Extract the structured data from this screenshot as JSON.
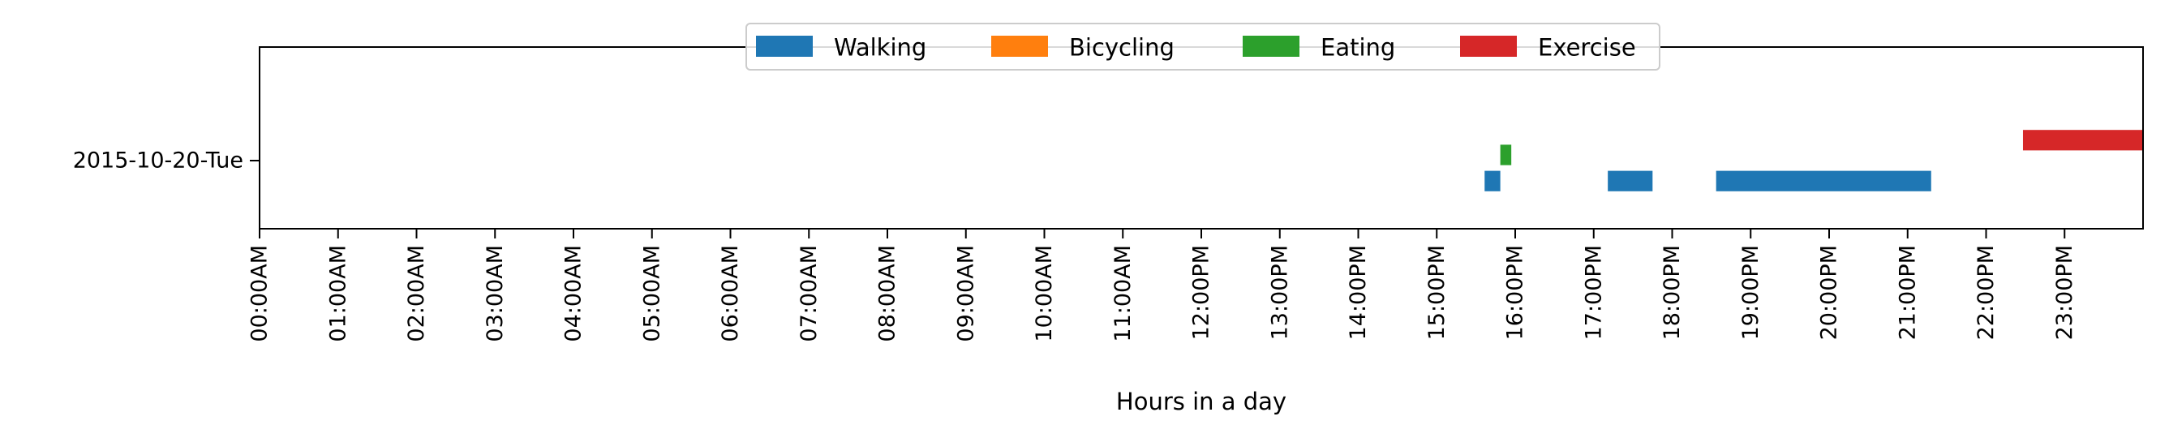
{
  "chart_data": {
    "type": "broken_barh",
    "title": "",
    "xlabel": "Hours in a day",
    "ylabel": "",
    "xlim": [
      0,
      24
    ],
    "x_unit": "hour",
    "x_ticks": [
      {
        "value": 0,
        "label": "00:00AM"
      },
      {
        "value": 1,
        "label": "01:00AM"
      },
      {
        "value": 2,
        "label": "02:00AM"
      },
      {
        "value": 3,
        "label": "03:00AM"
      },
      {
        "value": 4,
        "label": "04:00AM"
      },
      {
        "value": 5,
        "label": "05:00AM"
      },
      {
        "value": 6,
        "label": "06:00AM"
      },
      {
        "value": 7,
        "label": "07:00AM"
      },
      {
        "value": 8,
        "label": "08:00AM"
      },
      {
        "value": 9,
        "label": "09:00AM"
      },
      {
        "value": 10,
        "label": "10:00AM"
      },
      {
        "value": 11,
        "label": "11:00AM"
      },
      {
        "value": 12,
        "label": "12:00PM"
      },
      {
        "value": 13,
        "label": "13:00PM"
      },
      {
        "value": 14,
        "label": "14:00PM"
      },
      {
        "value": 15,
        "label": "15:00PM"
      },
      {
        "value": 16,
        "label": "16:00PM"
      },
      {
        "value": 17,
        "label": "17:00PM"
      },
      {
        "value": 18,
        "label": "18:00PM"
      },
      {
        "value": 19,
        "label": "19:00PM"
      },
      {
        "value": 20,
        "label": "20:00PM"
      },
      {
        "value": 21,
        "label": "21:00PM"
      },
      {
        "value": 22,
        "label": "22:00PM"
      },
      {
        "value": 23,
        "label": "23:00PM"
      }
    ],
    "ylim": [
      -0.6,
      1.0
    ],
    "y_ticks": [
      {
        "value": 0,
        "label": "2015-10-20-Tue"
      }
    ],
    "legend": {
      "placement": "upper-center",
      "columns": 4
    },
    "grid": false,
    "series": [
      {
        "name": "Walking",
        "color": "#1f77b4",
        "y_center": -0.18,
        "y_height": 0.18,
        "intervals": [
          [
            15.61,
            15.81
          ],
          [
            17.18,
            17.75
          ],
          [
            18.56,
            21.3
          ]
        ]
      },
      {
        "name": "Bicycling",
        "color": "#ff7f0e",
        "y_center": 0.0,
        "y_height": 0.18,
        "intervals": []
      },
      {
        "name": "Eating",
        "color": "#2ca02c",
        "y_center": 0.05,
        "y_height": 0.18,
        "intervals": [
          [
            15.81,
            15.95
          ]
        ]
      },
      {
        "name": "Exercise",
        "color": "#d62728",
        "y_center": 0.18,
        "y_height": 0.18,
        "intervals": [
          [
            22.47,
            24.0
          ]
        ]
      }
    ]
  }
}
